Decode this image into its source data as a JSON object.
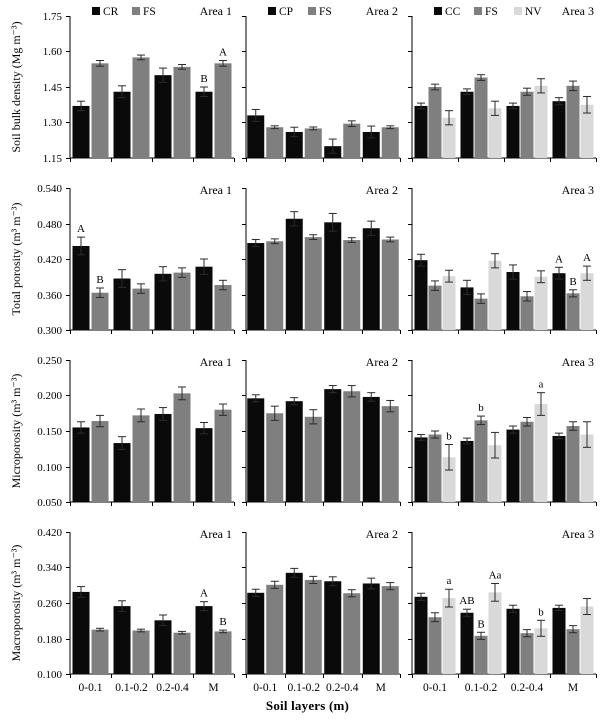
{
  "figure": {
    "xlabel": "Soil layers (m)",
    "categories": [
      "0-0.1",
      "0.1-0.2",
      "0.2-0.4",
      "M"
    ],
    "axis_color": "#000000",
    "error_color": "#2b2b2b",
    "palette": {
      "black": "#0a0a0a",
      "gray": "#7f7f7f",
      "lightgray": "#d9d9d9"
    }
  },
  "chart_data": [
    {
      "type": "bar",
      "area": "Area 1",
      "ylabel": "Soil bulk density (Mg m⁻³)",
      "ylim": [
        1.15,
        1.75
      ],
      "yticks": [
        1.15,
        1.3,
        1.45,
        1.6,
        1.75
      ],
      "ytick_labels": [
        "1.15",
        "1.30",
        "1.45",
        "1.60",
        "1.75"
      ],
      "series": [
        {
          "name": "CR",
          "color": "#0a0a0a",
          "values": [
            1.37,
            1.43,
            1.5,
            1.43
          ],
          "errors": [
            0.02,
            0.025,
            0.03,
            0.02
          ]
        },
        {
          "name": "FS",
          "color": "#7f7f7f",
          "values": [
            1.55,
            1.575,
            1.535,
            1.55
          ],
          "errors": [
            0.012,
            0.01,
            0.01,
            0.012
          ]
        }
      ],
      "annotations": [
        {
          "ci": 3,
          "si": 0,
          "text": "B"
        },
        {
          "ci": 3,
          "si": 1,
          "text": "A"
        }
      ]
    },
    {
      "type": "bar",
      "area": "Area 2",
      "ylabel": "",
      "ylim": [
        1.15,
        1.75
      ],
      "yticks": [
        1.15,
        1.3,
        1.45,
        1.6,
        1.75
      ],
      "ytick_labels": [
        "1.15",
        "1.30",
        "1.45",
        "1.60",
        "1.75"
      ],
      "series": [
        {
          "name": "CP",
          "color": "#0a0a0a",
          "values": [
            1.33,
            1.26,
            1.2,
            1.26
          ],
          "errors": [
            0.025,
            0.02,
            0.03,
            0.025
          ]
        },
        {
          "name": "FS",
          "color": "#7f7f7f",
          "values": [
            1.28,
            1.275,
            1.295,
            1.28
          ],
          "errors": [
            0.006,
            0.006,
            0.012,
            0.006
          ]
        }
      ],
      "annotations": []
    },
    {
      "type": "bar",
      "area": "Area 3",
      "ylabel": "",
      "ylim": [
        1.15,
        1.75
      ],
      "yticks": [
        1.15,
        1.3,
        1.45,
        1.6,
        1.75
      ],
      "ytick_labels": [
        "1.15",
        "1.30",
        "1.45",
        "1.60",
        "1.75"
      ],
      "series": [
        {
          "name": "CC",
          "color": "#0a0a0a",
          "values": [
            1.37,
            1.43,
            1.37,
            1.39
          ],
          "errors": [
            0.012,
            0.012,
            0.012,
            0.015
          ]
        },
        {
          "name": "FS",
          "color": "#7f7f7f",
          "values": [
            1.45,
            1.49,
            1.43,
            1.455
          ],
          "errors": [
            0.012,
            0.012,
            0.015,
            0.02
          ]
        },
        {
          "name": "NV",
          "color": "#d9d9d9",
          "values": [
            1.32,
            1.36,
            1.455,
            1.375
          ],
          "errors": [
            0.03,
            0.03,
            0.03,
            0.035
          ]
        }
      ],
      "annotations": []
    },
    {
      "type": "bar",
      "area": "Area 1",
      "ylabel": "Total porosity (m³ m⁻³)",
      "ylim": [
        0.3,
        0.54
      ],
      "yticks": [
        0.3,
        0.36,
        0.42,
        0.48,
        0.54
      ],
      "ytick_labels": [
        "0.300",
        "0.360",
        "0.420",
        "0.480",
        "0.540"
      ],
      "series": [
        {
          "name": "CR",
          "color": "#0a0a0a",
          "values": [
            0.442,
            0.387,
            0.395,
            0.407
          ],
          "errors": [
            0.015,
            0.015,
            0.012,
            0.013
          ]
        },
        {
          "name": "FS",
          "color": "#7f7f7f",
          "values": [
            0.363,
            0.37,
            0.397,
            0.376
          ],
          "errors": [
            0.008,
            0.008,
            0.008,
            0.008
          ]
        }
      ],
      "annotations": [
        {
          "ci": 0,
          "si": 0,
          "text": "A"
        },
        {
          "ci": 0,
          "si": 1,
          "text": "B"
        }
      ]
    },
    {
      "type": "bar",
      "area": "Area 2",
      "ylabel": "",
      "ylim": [
        0.3,
        0.54
      ],
      "yticks": [
        0.3,
        0.36,
        0.42,
        0.48,
        0.54
      ],
      "ytick_labels": [
        "0.300",
        "0.360",
        "0.420",
        "0.480",
        "0.540"
      ],
      "series": [
        {
          "name": "CP",
          "color": "#0a0a0a",
          "values": [
            0.447,
            0.488,
            0.482,
            0.472
          ],
          "errors": [
            0.006,
            0.012,
            0.015,
            0.012
          ]
        },
        {
          "name": "FS",
          "color": "#7f7f7f",
          "values": [
            0.45,
            0.457,
            0.452,
            0.453
          ],
          "errors": [
            0.004,
            0.004,
            0.004,
            0.004
          ]
        }
      ],
      "annotations": []
    },
    {
      "type": "bar",
      "area": "Area 3",
      "ylabel": "",
      "ylim": [
        0.3,
        0.54
      ],
      "yticks": [
        0.3,
        0.36,
        0.42,
        0.48,
        0.54
      ],
      "ytick_labels": [
        "0.300",
        "0.360",
        "0.420",
        "0.480",
        "0.540"
      ],
      "series": [
        {
          "name": "CC",
          "color": "#0a0a0a",
          "values": [
            0.418,
            0.372,
            0.398,
            0.396
          ],
          "errors": [
            0.01,
            0.012,
            0.012,
            0.01
          ]
        },
        {
          "name": "FS",
          "color": "#7f7f7f",
          "values": [
            0.375,
            0.353,
            0.357,
            0.362
          ],
          "errors": [
            0.008,
            0.008,
            0.008,
            0.006
          ]
        },
        {
          "name": "NV",
          "color": "#d9d9d9",
          "values": [
            0.391,
            0.417,
            0.39,
            0.396
          ],
          "errors": [
            0.01,
            0.012,
            0.01,
            0.012
          ]
        }
      ],
      "annotations": [
        {
          "ci": 3,
          "si": 0,
          "text": "A"
        },
        {
          "ci": 3,
          "si": 1,
          "text": "B"
        },
        {
          "ci": 3,
          "si": 2,
          "text": "A"
        }
      ]
    },
    {
      "type": "bar",
      "area": "Area 1",
      "ylabel": "Microporosity (m³ m⁻³)",
      "ylim": [
        0.05,
        0.25
      ],
      "yticks": [
        0.05,
        0.1,
        0.15,
        0.2,
        0.25
      ],
      "ytick_labels": [
        "0.050",
        "0.100",
        "0.150",
        "0.200",
        "0.250"
      ],
      "series": [
        {
          "name": "CR",
          "color": "#0a0a0a",
          "values": [
            0.155,
            0.133,
            0.174,
            0.154
          ],
          "errors": [
            0.008,
            0.009,
            0.009,
            0.008
          ]
        },
        {
          "name": "FS",
          "color": "#7f7f7f",
          "values": [
            0.164,
            0.172,
            0.203,
            0.18
          ],
          "errors": [
            0.008,
            0.009,
            0.009,
            0.008
          ]
        }
      ],
      "annotations": []
    },
    {
      "type": "bar",
      "area": "Area 2",
      "ylabel": "",
      "ylim": [
        0.05,
        0.25
      ],
      "yticks": [
        0.05,
        0.1,
        0.15,
        0.2,
        0.25
      ],
      "ytick_labels": [
        "0.050",
        "0.100",
        "0.150",
        "0.200",
        "0.250"
      ],
      "series": [
        {
          "name": "CP",
          "color": "#0a0a0a",
          "values": [
            0.196,
            0.192,
            0.209,
            0.198
          ],
          "errors": [
            0.005,
            0.005,
            0.005,
            0.006
          ]
        },
        {
          "name": "FS",
          "color": "#7f7f7f",
          "values": [
            0.175,
            0.17,
            0.206,
            0.185
          ],
          "errors": [
            0.01,
            0.01,
            0.008,
            0.008
          ]
        }
      ],
      "annotations": []
    },
    {
      "type": "bar",
      "area": "Area 3",
      "ylabel": "",
      "ylim": [
        0.05,
        0.25
      ],
      "yticks": [
        0.05,
        0.1,
        0.15,
        0.2,
        0.25
      ],
      "ytick_labels": [
        "0.050",
        "0.100",
        "0.150",
        "0.200",
        "0.250"
      ],
      "series": [
        {
          "name": "CC",
          "color": "#0a0a0a",
          "values": [
            0.141,
            0.136,
            0.152,
            0.143
          ],
          "errors": [
            0.004,
            0.004,
            0.005,
            0.004
          ]
        },
        {
          "name": "FS",
          "color": "#7f7f7f",
          "values": [
            0.145,
            0.165,
            0.163,
            0.157
          ],
          "errors": [
            0.005,
            0.006,
            0.006,
            0.006
          ]
        },
        {
          "name": "NV",
          "color": "#d9d9d9",
          "values": [
            0.113,
            0.13,
            0.188,
            0.145
          ],
          "errors": [
            0.018,
            0.018,
            0.016,
            0.018
          ]
        }
      ],
      "annotations": [
        {
          "ci": 0,
          "si": 2,
          "text": "b"
        },
        {
          "ci": 1,
          "si": 1,
          "text": "b"
        },
        {
          "ci": 2,
          "si": 2,
          "text": "a"
        }
      ]
    },
    {
      "type": "bar",
      "area": "Area 1",
      "ylabel": "Macroporosity (m³ m⁻³)",
      "ylim": [
        0.1,
        0.42
      ],
      "yticks": [
        0.1,
        0.18,
        0.26,
        0.34,
        0.42
      ],
      "ytick_labels": [
        "0.100",
        "0.180",
        "0.260",
        "0.340",
        "0.420"
      ],
      "series": [
        {
          "name": "CR",
          "color": "#0a0a0a",
          "values": [
            0.285,
            0.253,
            0.221,
            0.253
          ],
          "errors": [
            0.012,
            0.012,
            0.012,
            0.01
          ]
        },
        {
          "name": "FS",
          "color": "#7f7f7f",
          "values": [
            0.2,
            0.198,
            0.193,
            0.196
          ],
          "errors": [
            0.003,
            0.003,
            0.003,
            0.003
          ]
        }
      ],
      "annotations": [
        {
          "ci": 3,
          "si": 0,
          "text": "A"
        },
        {
          "ci": 3,
          "si": 1,
          "text": "B"
        }
      ]
    },
    {
      "type": "bar",
      "area": "Area 2",
      "ylabel": "",
      "ylim": [
        0.1,
        0.42
      ],
      "yticks": [
        0.1,
        0.18,
        0.26,
        0.34,
        0.42
      ],
      "ytick_labels": [
        "0.100",
        "0.180",
        "0.260",
        "0.340",
        "0.420"
      ],
      "series": [
        {
          "name": "CP",
          "color": "#0a0a0a",
          "values": [
            0.283,
            0.328,
            0.309,
            0.304
          ],
          "errors": [
            0.008,
            0.01,
            0.01,
            0.012
          ]
        },
        {
          "name": "FS",
          "color": "#7f7f7f",
          "values": [
            0.301,
            0.312,
            0.282,
            0.298
          ],
          "errors": [
            0.008,
            0.008,
            0.008,
            0.008
          ]
        }
      ],
      "annotations": []
    },
    {
      "type": "bar",
      "area": "Area 3",
      "ylabel": "",
      "ylim": [
        0.1,
        0.42
      ],
      "yticks": [
        0.1,
        0.18,
        0.26,
        0.34,
        0.42
      ],
      "ytick_labels": [
        "0.100",
        "0.180",
        "0.260",
        "0.340",
        "0.420"
      ],
      "series": [
        {
          "name": "CC",
          "color": "#0a0a0a",
          "values": [
            0.274,
            0.238,
            0.247,
            0.249
          ],
          "errors": [
            0.008,
            0.008,
            0.008,
            0.006
          ]
        },
        {
          "name": "FS",
          "color": "#7f7f7f",
          "values": [
            0.228,
            0.186,
            0.192,
            0.201
          ],
          "errors": [
            0.01,
            0.008,
            0.008,
            0.008
          ]
        },
        {
          "name": "NV",
          "color": "#d9d9d9",
          "values": [
            0.271,
            0.284,
            0.203,
            0.252
          ],
          "errors": [
            0.02,
            0.02,
            0.018,
            0.018
          ]
        }
      ],
      "annotations": [
        {
          "ci": 0,
          "si": 2,
          "text": "a"
        },
        {
          "ci": 1,
          "si": 0,
          "text": "AB"
        },
        {
          "ci": 1,
          "si": 1,
          "text": "B"
        },
        {
          "ci": 1,
          "si": 2,
          "text": "Aa"
        },
        {
          "ci": 2,
          "si": 2,
          "text": "b"
        }
      ]
    }
  ]
}
